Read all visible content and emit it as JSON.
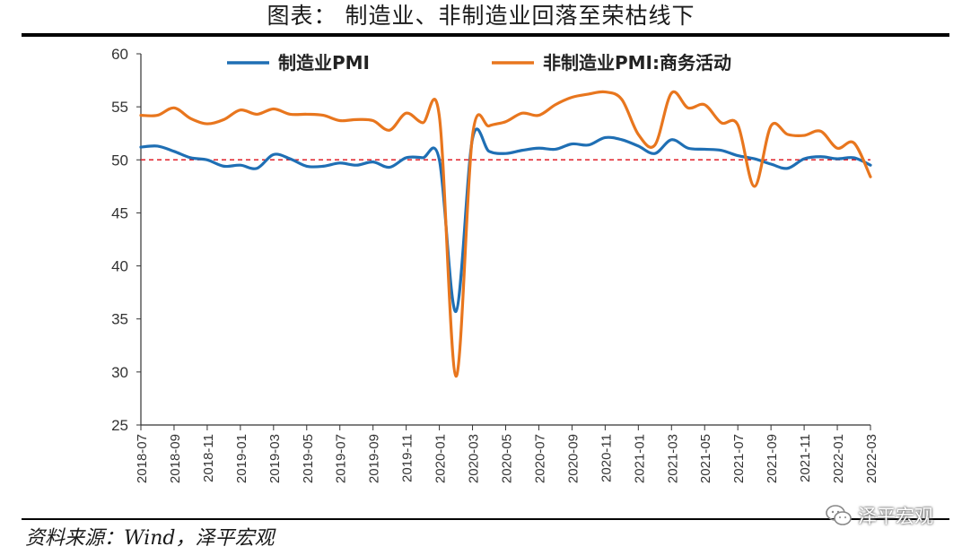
{
  "page": {
    "title": "图表： 制造业、非制造业回落至荣枯线下",
    "source": "资料来源：Wind，泽平宏观",
    "watermark": "泽平宏观",
    "watermark_icon": "wechat-icon"
  },
  "chart_data": {
    "type": "line",
    "title": "图表： 制造业、非制造业回落至荣枯线下",
    "xlabel": "",
    "ylabel": "",
    "ylim": [
      25,
      60
    ],
    "yticks": [
      25,
      30,
      35,
      40,
      45,
      50,
      55,
      60
    ],
    "x": [
      "2018-07",
      "2018-08",
      "2018-09",
      "2018-10",
      "2018-11",
      "2018-12",
      "2019-01",
      "2019-02",
      "2019-03",
      "2019-04",
      "2019-05",
      "2019-06",
      "2019-07",
      "2019-08",
      "2019-09",
      "2019-10",
      "2019-11",
      "2019-12",
      "2020-01",
      "2020-02",
      "2020-03",
      "2020-04",
      "2020-05",
      "2020-06",
      "2020-07",
      "2020-08",
      "2020-09",
      "2020-10",
      "2020-11",
      "2020-12",
      "2021-01",
      "2021-02",
      "2021-03",
      "2021-04",
      "2021-05",
      "2021-06",
      "2021-07",
      "2021-08",
      "2021-09",
      "2021-10",
      "2021-11",
      "2021-12",
      "2022-01",
      "2022-02",
      "2022-03"
    ],
    "xtick_labels": [
      "2018-07",
      "2018-09",
      "2018-11",
      "2019-01",
      "2019-03",
      "2019-05",
      "2019-07",
      "2019-09",
      "2019-11",
      "2020-01",
      "2020-03",
      "2020-05",
      "2020-07",
      "2020-09",
      "2020-11",
      "2021-01",
      "2021-03",
      "2021-05",
      "2021-07",
      "2021-09",
      "2021-11",
      "2022-01",
      "2022-03"
    ],
    "series": [
      {
        "name": "制造业PMI",
        "color": "#1f6fb4",
        "values": [
          51.2,
          51.3,
          50.8,
          50.2,
          50.0,
          49.4,
          49.5,
          49.2,
          50.5,
          50.1,
          49.4,
          49.4,
          49.7,
          49.5,
          49.8,
          49.3,
          50.2,
          50.2,
          50.0,
          35.7,
          52.0,
          50.8,
          50.6,
          50.9,
          51.1,
          51.0,
          51.5,
          51.4,
          52.1,
          51.9,
          51.3,
          50.6,
          51.9,
          51.1,
          51.0,
          50.9,
          50.4,
          50.1,
          49.6,
          49.2,
          50.1,
          50.3,
          50.1,
          50.2,
          49.5
        ]
      },
      {
        "name": "非制造业PMI:商务活动",
        "color": "#e8761e",
        "values": [
          54.2,
          54.2,
          54.9,
          53.9,
          53.4,
          53.8,
          54.7,
          54.3,
          54.8,
          54.3,
          54.3,
          54.2,
          53.7,
          53.8,
          53.7,
          52.8,
          54.4,
          53.5,
          54.1,
          29.6,
          52.3,
          53.2,
          53.6,
          54.4,
          54.2,
          55.2,
          55.9,
          56.2,
          56.4,
          55.7,
          52.4,
          51.4,
          56.3,
          54.9,
          55.2,
          53.5,
          53.3,
          47.5,
          53.2,
          52.4,
          52.3,
          52.7,
          51.1,
          51.6,
          48.4
        ]
      }
    ],
    "reference_line": {
      "value": 50,
      "color": "#e0202a",
      "style": "dashed"
    },
    "legend": {
      "position": "top-center"
    },
    "grid": false
  }
}
